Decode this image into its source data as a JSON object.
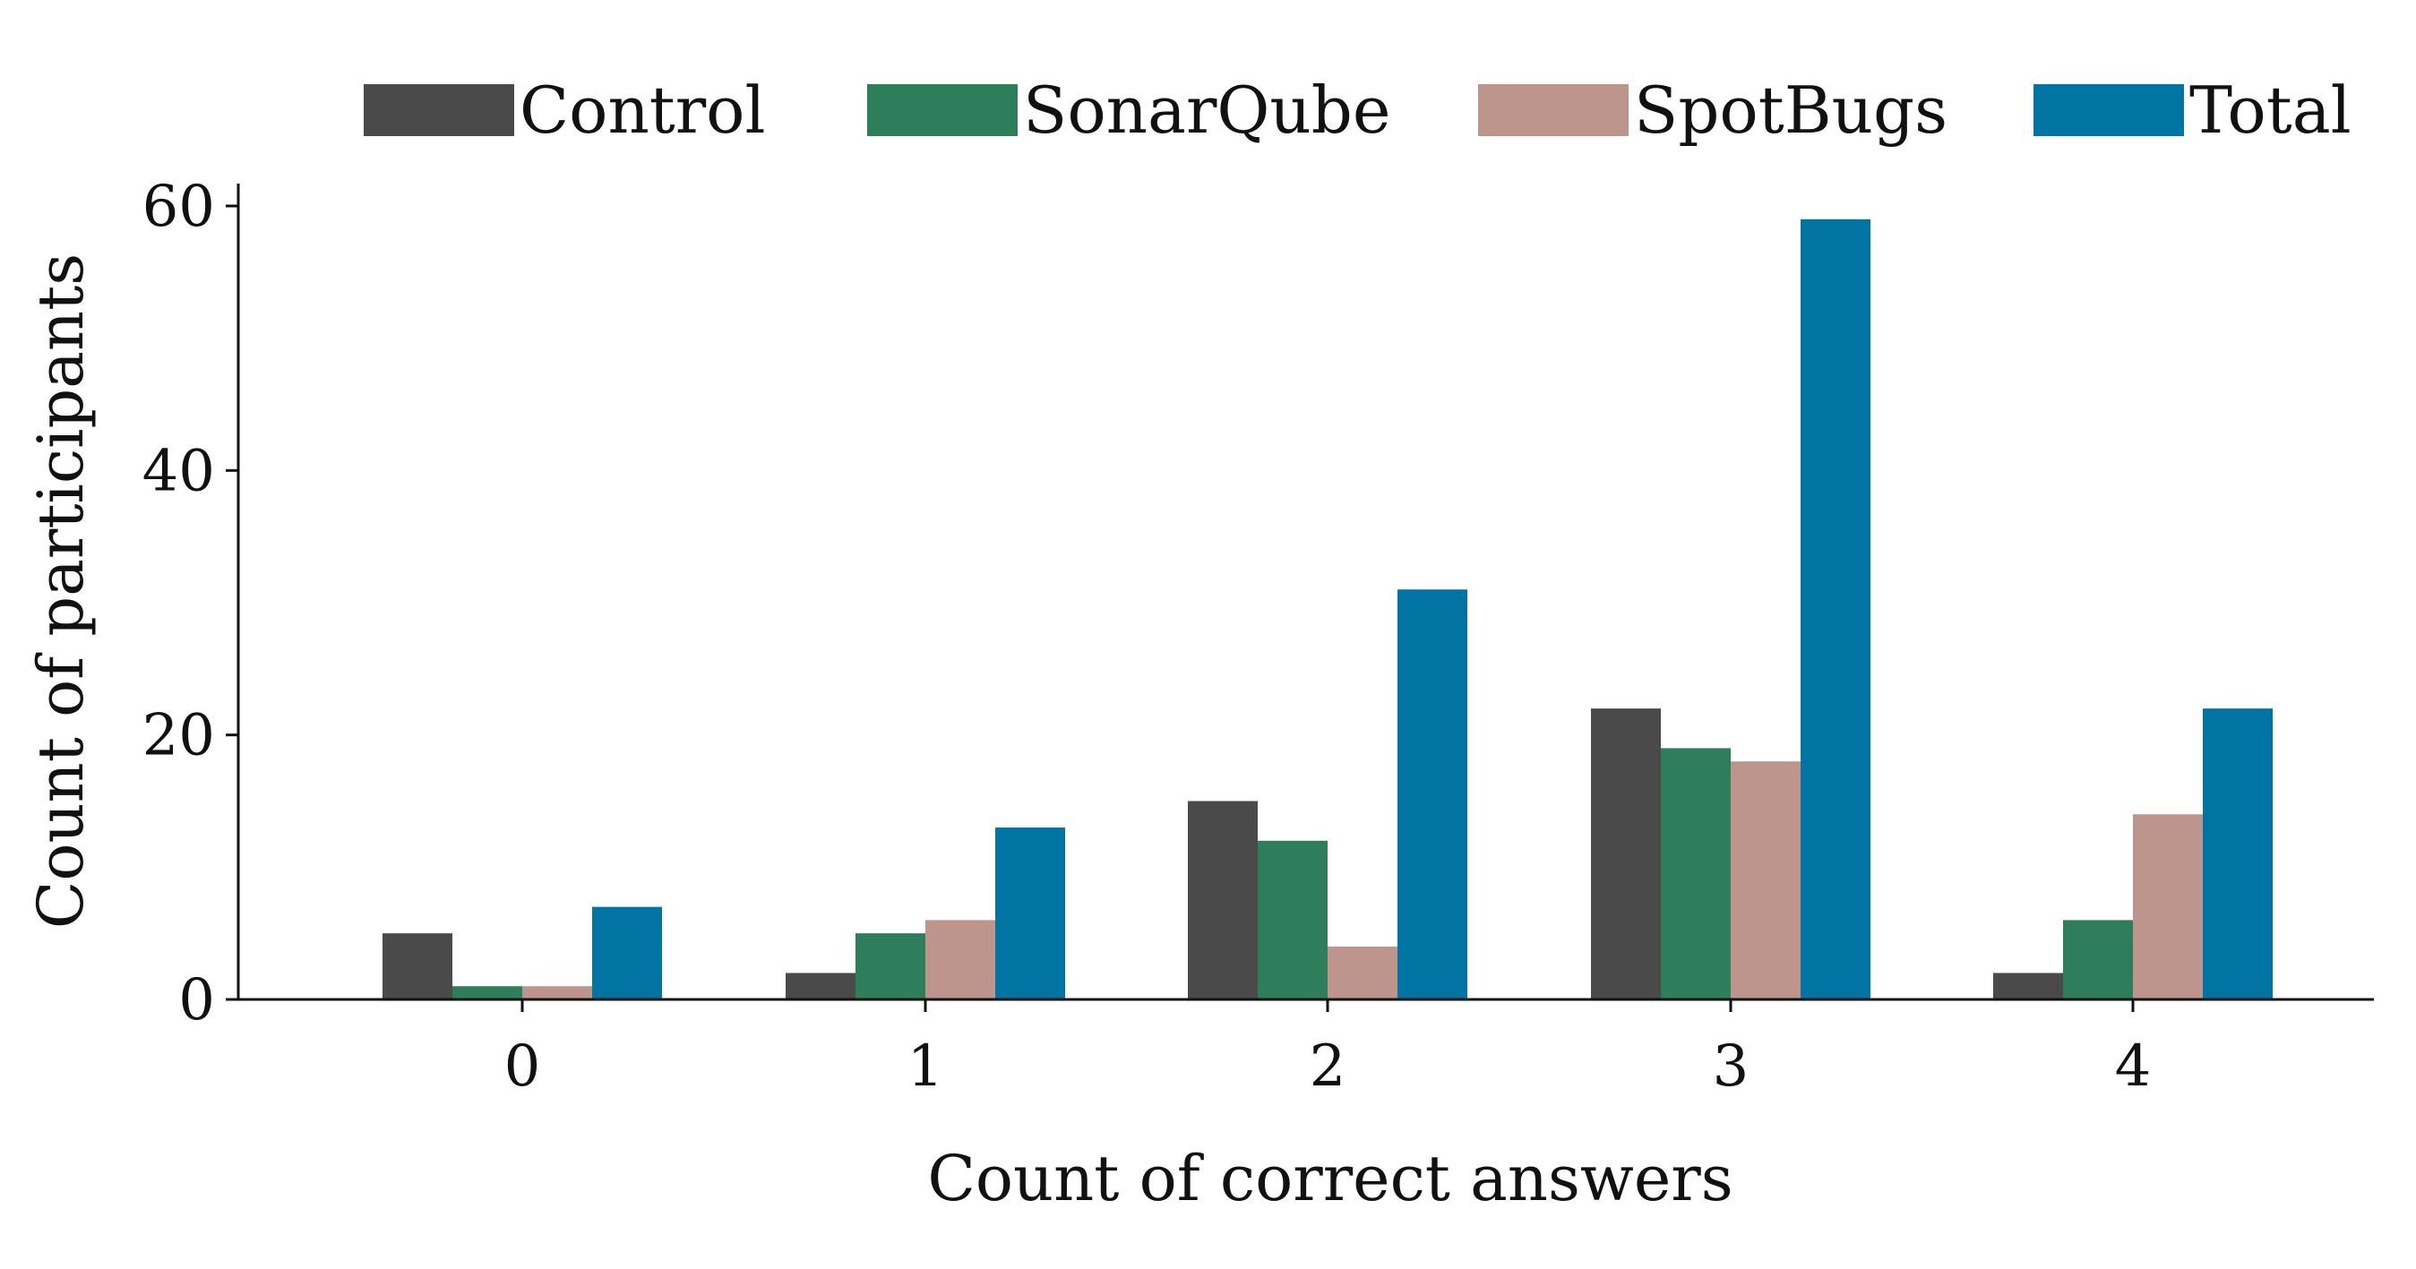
{
  "chart_data": {
    "type": "bar",
    "categories": [
      "0",
      "1",
      "2",
      "3",
      "4"
    ],
    "series": [
      {
        "name": "Control",
        "color": "#4a4a4a",
        "values": [
          5,
          2,
          15,
          22,
          2
        ]
      },
      {
        "name": "SonarQube",
        "color": "#2e7d5b",
        "values": [
          1,
          5,
          12,
          19,
          6
        ]
      },
      {
        "name": "SpotBugs",
        "color": "#be958c",
        "values": [
          1,
          6,
          4,
          18,
          14
        ]
      },
      {
        "name": "Total",
        "color": "#0174a3",
        "values": [
          7,
          13,
          31,
          59,
          22
        ]
      }
    ],
    "title": "",
    "xlabel": "Count of correct answers",
    "ylabel": "Count of participants",
    "ylim": [
      0,
      60
    ],
    "yticks": [
      0,
      20,
      40,
      60
    ],
    "grid": false,
    "legend_position": "top"
  }
}
